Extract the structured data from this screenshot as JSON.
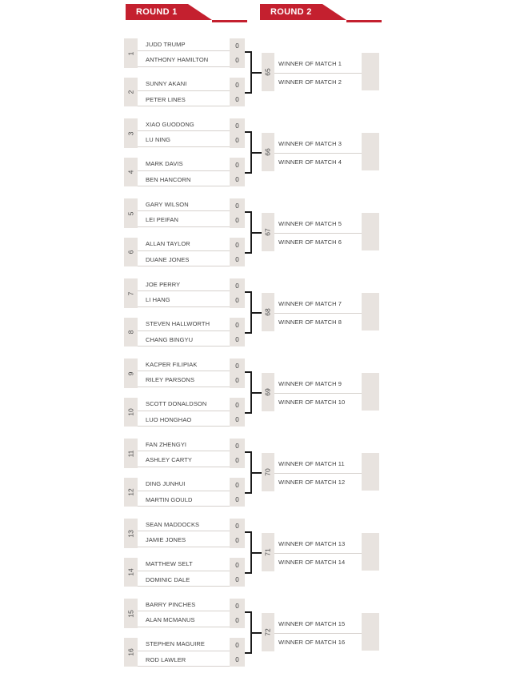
{
  "header": {
    "round1_label": "ROUND 1",
    "round2_label": "ROUND 2"
  },
  "colors": {
    "red": "#C4202F",
    "box": "#E8E3DF",
    "line": "#D6D1CD",
    "conn": "#1B1B1B",
    "text": "#3F3F3F"
  },
  "round1": {
    "matches": [
      {
        "number": "1",
        "players": [
          {
            "name": "JUDD TRUMP",
            "score": "0"
          },
          {
            "name": "ANTHONY HAMILTON",
            "score": "0"
          }
        ]
      },
      {
        "number": "2",
        "players": [
          {
            "name": "SUNNY AKANI",
            "score": "0"
          },
          {
            "name": "PETER LINES",
            "score": "0"
          }
        ]
      },
      {
        "number": "3",
        "players": [
          {
            "name": "XIAO GUODONG",
            "score": "0"
          },
          {
            "name": "LU NING",
            "score": "0"
          }
        ]
      },
      {
        "number": "4",
        "players": [
          {
            "name": "MARK DAVIS",
            "score": "0"
          },
          {
            "name": "BEN HANCORN",
            "score": "0"
          }
        ]
      },
      {
        "number": "5",
        "players": [
          {
            "name": "GARY WILSON",
            "score": "0"
          },
          {
            "name": "LEI PEIFAN",
            "score": "0"
          }
        ]
      },
      {
        "number": "6",
        "players": [
          {
            "name": "ALLAN TAYLOR",
            "score": "0"
          },
          {
            "name": "DUANE JONES",
            "score": "0"
          }
        ]
      },
      {
        "number": "7",
        "players": [
          {
            "name": "JOE PERRY",
            "score": "0"
          },
          {
            "name": "LI HANG",
            "score": "0"
          }
        ]
      },
      {
        "number": "8",
        "players": [
          {
            "name": "STEVEN HALLWORTH",
            "score": "0"
          },
          {
            "name": "CHANG BINGYU",
            "score": "0"
          }
        ]
      },
      {
        "number": "9",
        "players": [
          {
            "name": "KACPER FILIPIAK",
            "score": "0"
          },
          {
            "name": "RILEY PARSONS",
            "score": "0"
          }
        ]
      },
      {
        "number": "10",
        "players": [
          {
            "name": "SCOTT DONALDSON",
            "score": "0"
          },
          {
            "name": "LUO HONGHAO",
            "score": "0"
          }
        ]
      },
      {
        "number": "11",
        "players": [
          {
            "name": "FAN ZHENGYI",
            "score": "0"
          },
          {
            "name": "ASHLEY CARTY",
            "score": "0"
          }
        ]
      },
      {
        "number": "12",
        "players": [
          {
            "name": "DING JUNHUI",
            "score": "0"
          },
          {
            "name": "MARTIN GOULD",
            "score": "0"
          }
        ]
      },
      {
        "number": "13",
        "players": [
          {
            "name": "SEAN MADDOCKS",
            "score": "0"
          },
          {
            "name": "JAMIE JONES",
            "score": "0"
          }
        ]
      },
      {
        "number": "14",
        "players": [
          {
            "name": "MATTHEW SELT",
            "score": "0"
          },
          {
            "name": "DOMINIC DALE",
            "score": "0"
          }
        ]
      },
      {
        "number": "15",
        "players": [
          {
            "name": "BARRY PINCHES",
            "score": "0"
          },
          {
            "name": "ALAN MCMANUS",
            "score": "0"
          }
        ]
      },
      {
        "number": "16",
        "players": [
          {
            "name": "STEPHEN MAGUIRE",
            "score": "0"
          },
          {
            "name": "ROD LAWLER",
            "score": "0"
          }
        ]
      }
    ]
  },
  "round2": {
    "matches": [
      {
        "number": "65",
        "rows": [
          "WINNER OF MATCH 1",
          "WINNER OF MATCH 2"
        ]
      },
      {
        "number": "66",
        "rows": [
          "WINNER OF MATCH 3",
          "WINNER OF MATCH 4"
        ]
      },
      {
        "number": "67",
        "rows": [
          "WINNER OF MATCH 5",
          "WINNER OF MATCH 6"
        ]
      },
      {
        "number": "68",
        "rows": [
          "WINNER OF MATCH 7",
          "WINNER OF MATCH 8"
        ]
      },
      {
        "number": "69",
        "rows": [
          "WINNER OF MATCH 9",
          "WINNER OF MATCH 10"
        ]
      },
      {
        "number": "70",
        "rows": [
          "WINNER OF MATCH 11",
          "WINNER OF MATCH 12"
        ]
      },
      {
        "number": "71",
        "rows": [
          "WINNER OF MATCH 13",
          "WINNER OF MATCH 14"
        ]
      },
      {
        "number": "72",
        "rows": [
          "WINNER OF MATCH 15",
          "WINNER OF MATCH 16"
        ]
      }
    ]
  }
}
